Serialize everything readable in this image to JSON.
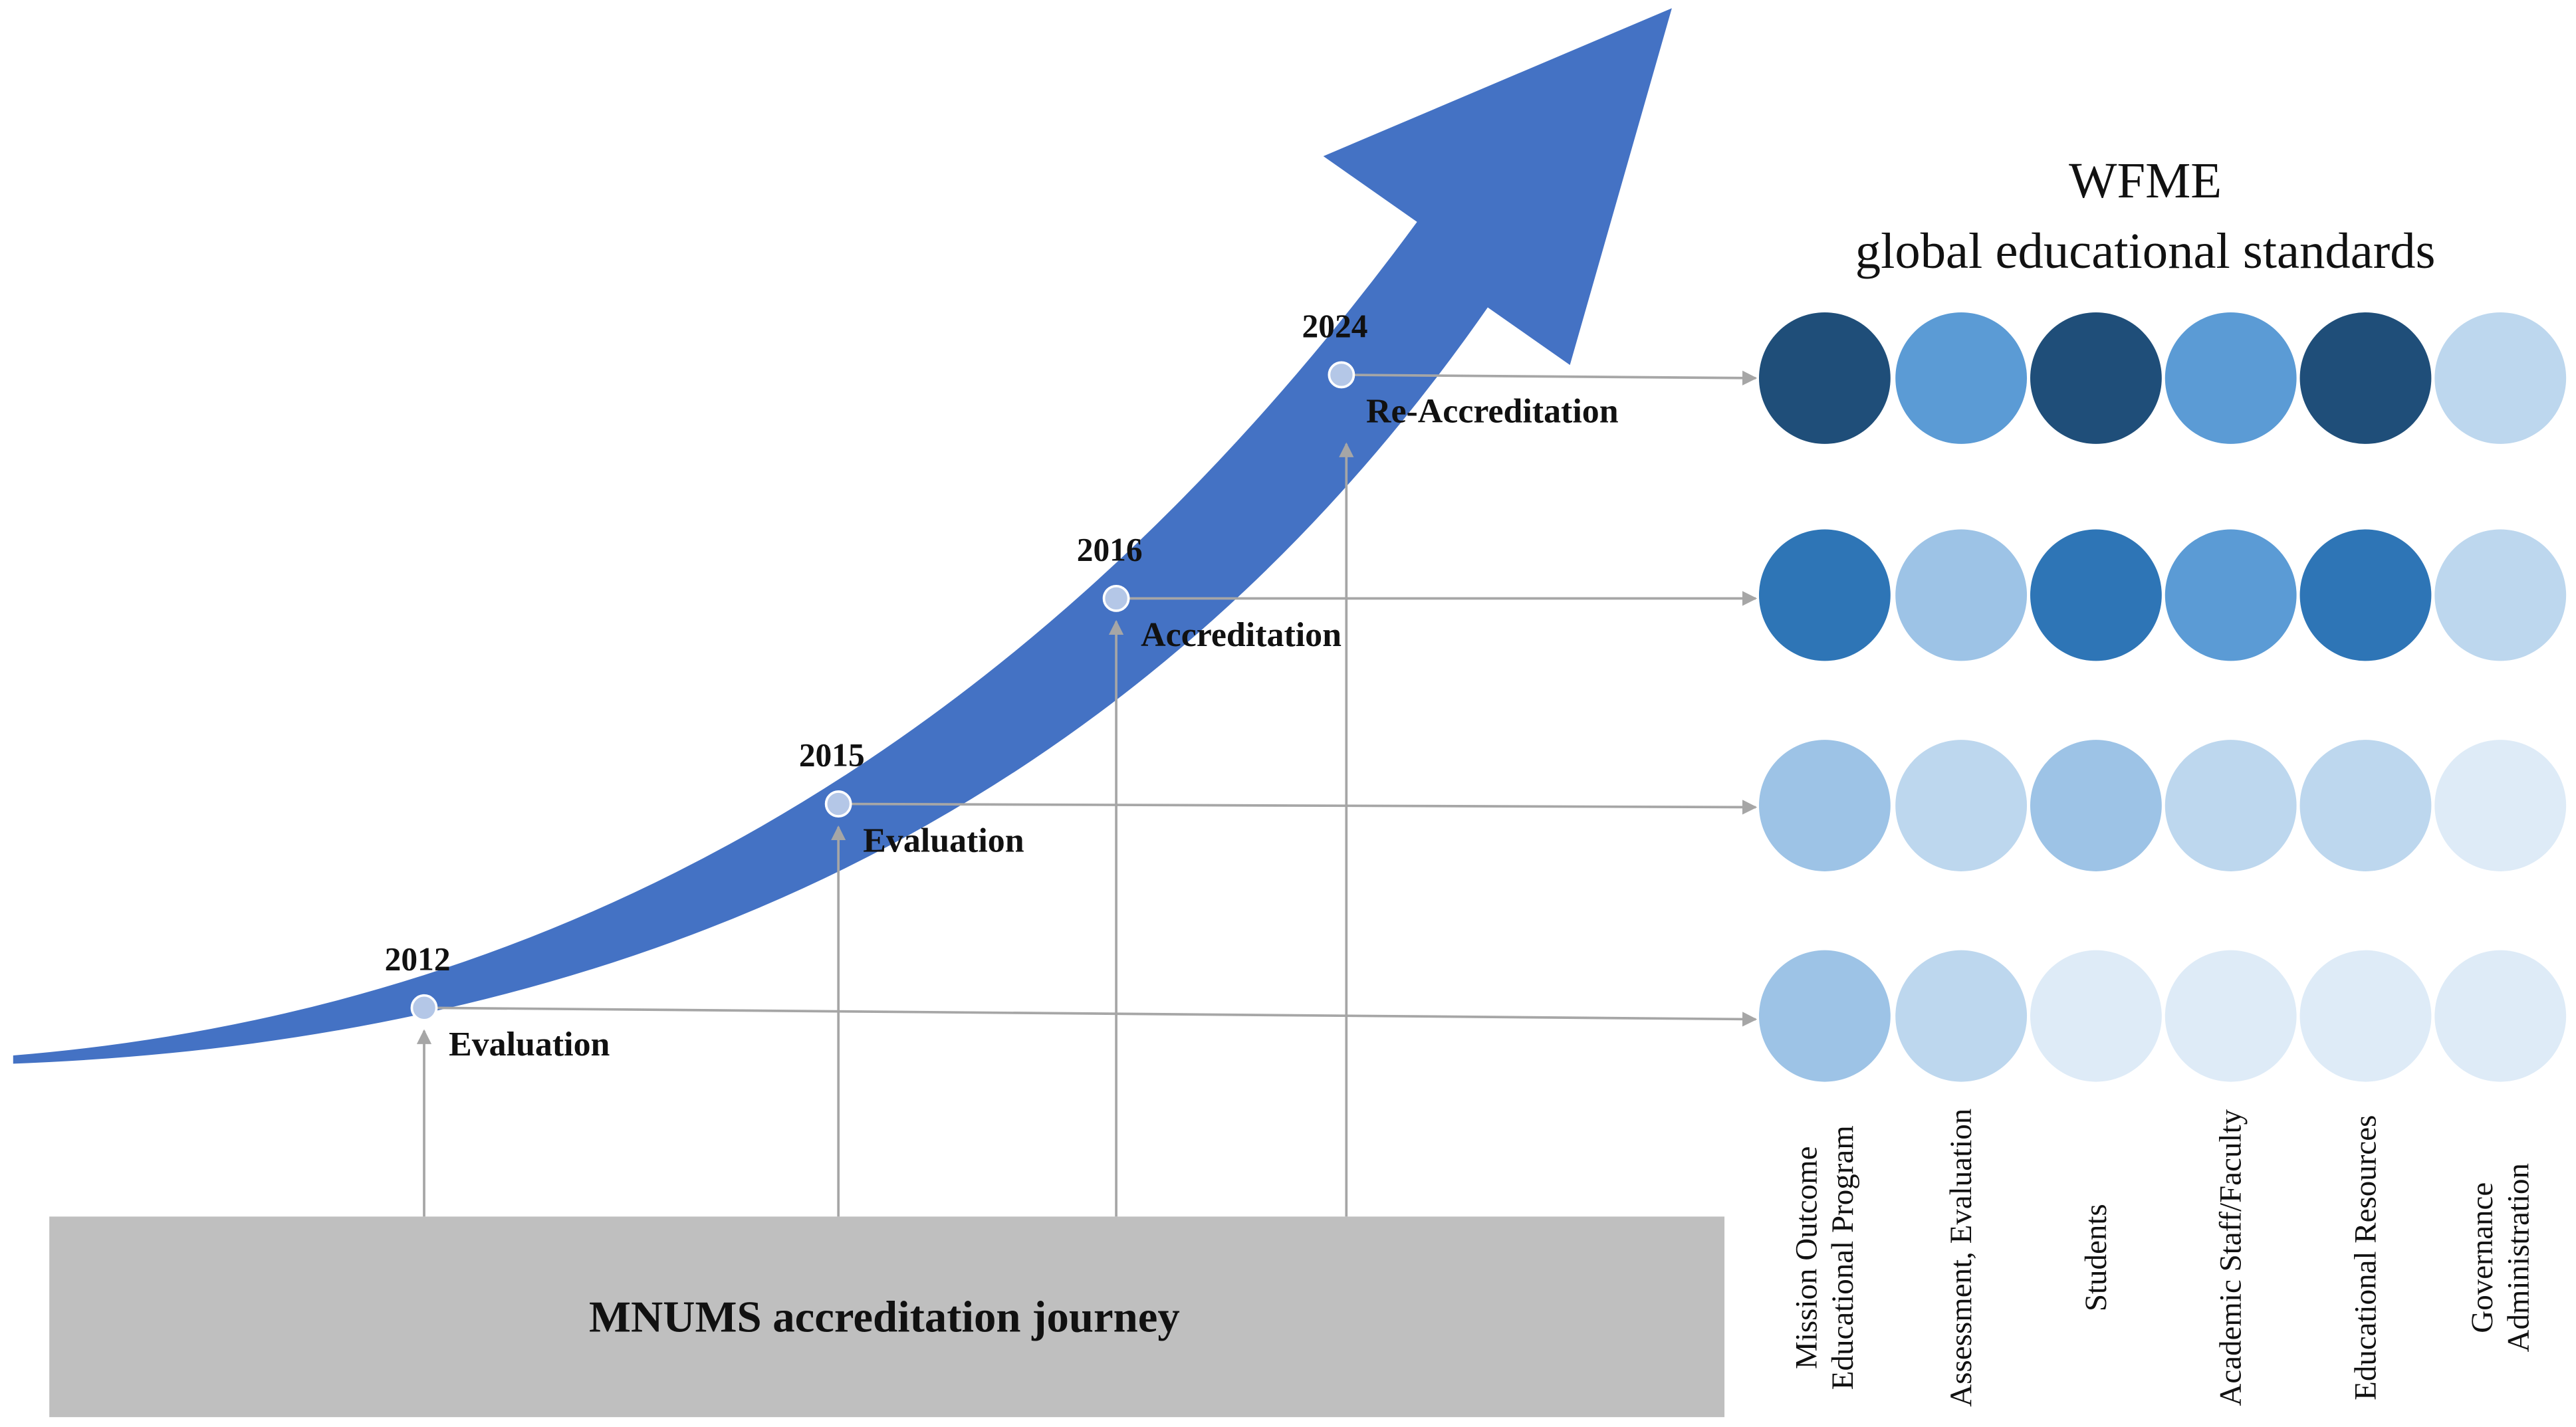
{
  "title": [
    "WFME",
    "global educational standards"
  ],
  "milestones": [
    {
      "year": "2012",
      "label": "Evaluation"
    },
    {
      "year": "2015",
      "label": "Evaluation"
    },
    {
      "year": "2016",
      "label": "Accreditation"
    },
    {
      "year": "2024",
      "label": "Re-Accreditation"
    }
  ],
  "standards": [
    [
      "Mission Outcome",
      "Educational Program"
    ],
    [
      "Assessment, Evaluation"
    ],
    [
      "Students"
    ],
    [
      "Academic Staff/Faculty"
    ],
    [
      "Educational Resources"
    ],
    [
      "Governance",
      "Administration"
    ]
  ],
  "circle_colors": [
    [
      "#9dc3e6",
      "#bdd7ee",
      "#deebf7",
      "#deebf7",
      "#deebf7",
      "#deebf7"
    ],
    [
      "#9dc3e6",
      "#bdd7ee",
      "#9dc3e6",
      "#bdd7ee",
      "#bdd7ee",
      "#deebf7"
    ],
    [
      "#2e75b6",
      "#9dc3e6",
      "#2e75b6",
      "#5b9bd5",
      "#2e75b6",
      "#bdd7ee"
    ],
    [
      "#1f4e79",
      "#5b9bd5",
      "#1f4e79",
      "#5b9bd5",
      "#1f4e79",
      "#bdd7ee"
    ]
  ],
  "footer": "MNUMS accreditation journey"
}
